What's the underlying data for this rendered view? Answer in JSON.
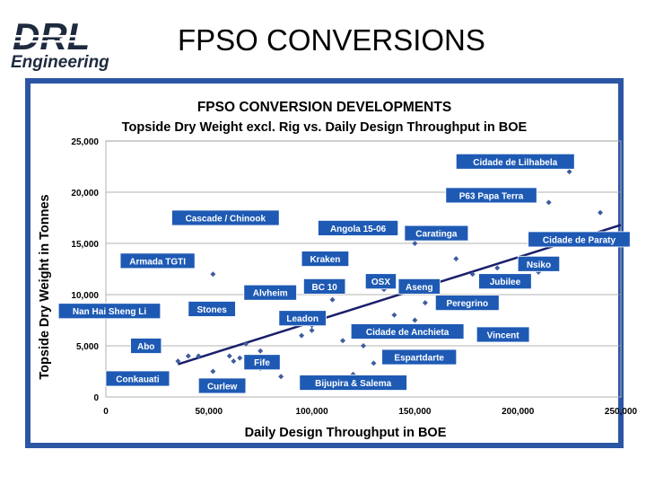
{
  "header": {
    "logo_main": "DRL",
    "logo_sub": "Engineering",
    "title": "FPSO CONVERSIONS"
  },
  "colors": {
    "panel": "#2c56a4",
    "plot_bg": "#ffffff",
    "marker": "#3f5c9e",
    "trend": "#1a1f6b",
    "label_bg": "#1e5ab4",
    "logo": "#1e2a3e"
  },
  "chart_data": {
    "type": "scatter",
    "title": "FPSO  CONVERSION DEVELOPMENTS",
    "subtitle": "Topside Dry Weight excl. Rig vs. Daily Design Throughput in BOE",
    "xlabel": "Daily Design Throughput in BOE",
    "ylabel": "Topside Dry Weight in Tonnes",
    "xlim": [
      0,
      250000
    ],
    "ylim": [
      0,
      25000
    ],
    "x_ticks": [
      "0",
      "50,000",
      "100,000",
      "150,000",
      "200,000",
      "250,000"
    ],
    "y_ticks": [
      "0",
      "5,000",
      "10,000",
      "15,000",
      "20,000",
      "25,000"
    ],
    "grid": "horizontal",
    "points": [
      {
        "x": 35000,
        "y": 3500
      },
      {
        "x": 40000,
        "y": 4000
      },
      {
        "x": 45000,
        "y": 4000
      },
      {
        "x": 52000,
        "y": 2500
      },
      {
        "x": 60000,
        "y": 4000
      },
      {
        "x": 62000,
        "y": 3500
      },
      {
        "x": 65000,
        "y": 3800
      },
      {
        "x": 68000,
        "y": 5200
      },
      {
        "x": 75000,
        "y": 4500
      },
      {
        "x": 75000,
        "y": 2800
      },
      {
        "x": 80000,
        "y": 10500
      },
      {
        "x": 85000,
        "y": 2000
      },
      {
        "x": 95000,
        "y": 6000
      },
      {
        "x": 100000,
        "y": 7000
      },
      {
        "x": 108000,
        "y": 1500
      },
      {
        "x": 110000,
        "y": 9500
      },
      {
        "x": 115000,
        "y": 5500
      },
      {
        "x": 120000,
        "y": 2200
      },
      {
        "x": 125000,
        "y": 5000
      },
      {
        "x": 130000,
        "y": 3300
      },
      {
        "x": 135000,
        "y": 10500
      },
      {
        "x": 140000,
        "y": 8000
      },
      {
        "x": 150000,
        "y": 7500
      },
      {
        "x": 150000,
        "y": 15000
      },
      {
        "x": 155000,
        "y": 9200
      },
      {
        "x": 170000,
        "y": 13500
      },
      {
        "x": 178000,
        "y": 12000
      },
      {
        "x": 190000,
        "y": 12600
      },
      {
        "x": 200000,
        "y": 11500
      },
      {
        "x": 210000,
        "y": 12200
      },
      {
        "x": 225000,
        "y": 22000
      },
      {
        "x": 130000,
        "y": 16000
      },
      {
        "x": 240000,
        "y": 18000
      },
      {
        "x": 215000,
        "y": 19000
      },
      {
        "x": 52000,
        "y": 12000
      },
      {
        "x": 100000,
        "y": 6500
      }
    ],
    "trendline": {
      "x": [
        35000,
        250000
      ],
      "y": [
        3200,
        16800
      ]
    },
    "annotations": [
      {
        "text": "Cidade de Lilhabela",
        "x": 170000,
        "y": 23000
      },
      {
        "text": "P63 Papa Terra",
        "x": 165000,
        "y": 19700
      },
      {
        "text": "Cascade / Chinook",
        "x": 32000,
        "y": 17500
      },
      {
        "text": "Angola 15-06",
        "x": 103000,
        "y": 16500
      },
      {
        "text": "Caratinga",
        "x": 145000,
        "y": 16000
      },
      {
        "text": "Cidade de Paraty",
        "x": 205000,
        "y": 15400
      },
      {
        "text": "Armada TGTI",
        "x": 7000,
        "y": 13300
      },
      {
        "text": "Kraken",
        "x": 95000,
        "y": 13500
      },
      {
        "text": "Nsiko",
        "x": 200000,
        "y": 13000
      },
      {
        "text": "OSX",
        "x": 126000,
        "y": 11300
      },
      {
        "text": "Jubilee",
        "x": 181000,
        "y": 11300
      },
      {
        "text": "Alvheim",
        "x": 67000,
        "y": 10200
      },
      {
        "text": "BC 10",
        "x": 96000,
        "y": 10800
      },
      {
        "text": "Aseng",
        "x": 142000,
        "y": 10800
      },
      {
        "text": "Peregrino",
        "x": 160000,
        "y": 9200
      },
      {
        "text": "Nan Hai Sheng Li",
        "x": -23000,
        "y": 8400
      },
      {
        "text": "Stones",
        "x": 40000,
        "y": 8600
      },
      {
        "text": "Leadon",
        "x": 84000,
        "y": 7700
      },
      {
        "text": "Cidade de Anchieta",
        "x": 119000,
        "y": 6400
      },
      {
        "text": "Vincent",
        "x": 180000,
        "y": 6100
      },
      {
        "text": "Abo",
        "x": 12000,
        "y": 5000
      },
      {
        "text": "Espartdarte",
        "x": 134000,
        "y": 3900
      },
      {
        "text": "Fife",
        "x": 67000,
        "y": 3400
      },
      {
        "text": "Conkauati",
        "x": 0,
        "y": 1800
      },
      {
        "text": "Curlew",
        "x": 45000,
        "y": 1100
      },
      {
        "text": "Bijupira & Salema",
        "x": 94000,
        "y": 1400
      }
    ]
  }
}
